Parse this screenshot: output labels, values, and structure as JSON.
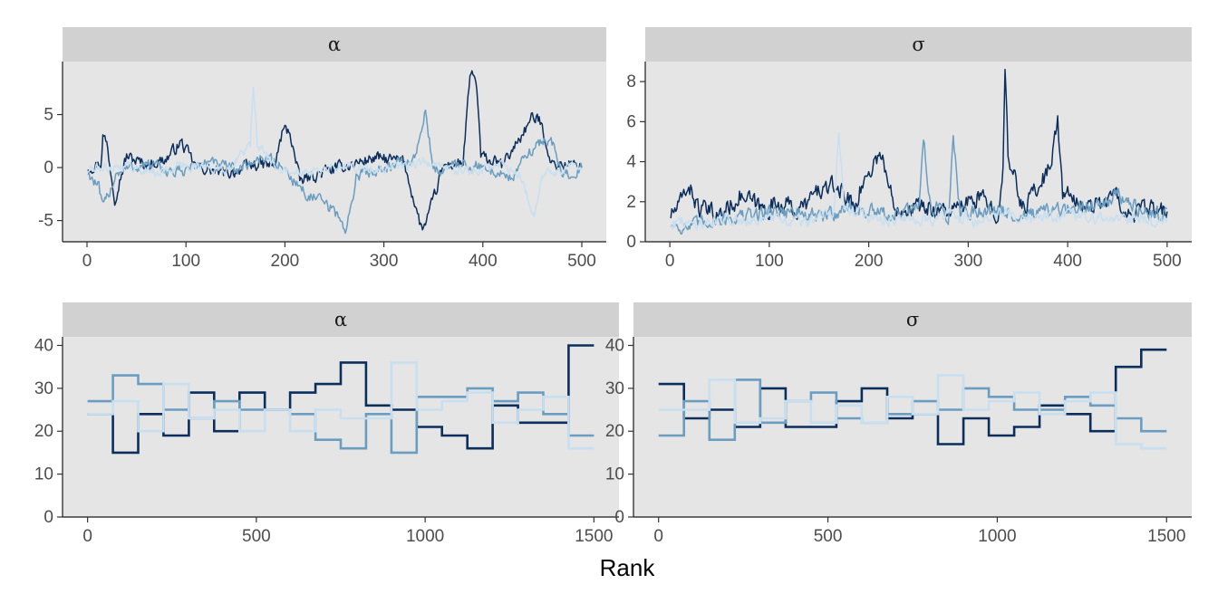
{
  "figure": {
    "xlabel": "Rank",
    "background": "#ffffff",
    "panel_background": "#e5e5e5",
    "strip_background": "#d1d1d1"
  },
  "chain_colors": [
    "#0b2e5c",
    "#2f6390",
    "#6a9dc0",
    "#c8dff0"
  ],
  "chart_data": [
    {
      "type": "line",
      "subtype": "trace",
      "panel_title": "α",
      "xlim": [
        0,
        500
      ],
      "ylim": [
        -7,
        10
      ],
      "xticks": [
        0,
        100,
        200,
        300,
        400,
        500
      ],
      "yticks": [
        -5,
        0,
        5
      ],
      "ytick_labels": [
        "-5",
        "0",
        "5"
      ],
      "grid": false,
      "series": [
        {
          "chain": 1,
          "knots": [
            [
              0,
              0
            ],
            [
              14,
              0.4
            ],
            [
              16,
              3.1
            ],
            [
              20,
              2.3
            ],
            [
              28,
              -2.8
            ],
            [
              40,
              1.1
            ],
            [
              60,
              0.2
            ],
            [
              80,
              0.8
            ],
            [
              95,
              2.4
            ],
            [
              110,
              0.1
            ],
            [
              140,
              -0.6
            ],
            [
              170,
              0.3
            ],
            [
              190,
              0.2
            ],
            [
              198,
              3.6
            ],
            [
              205,
              3.4
            ],
            [
              215,
              -1.3
            ],
            [
              240,
              -0.4
            ],
            [
              290,
              0.9
            ],
            [
              320,
              0.6
            ],
            [
              338,
              -5.8
            ],
            [
              343,
              -5.2
            ],
            [
              360,
              0.1
            ],
            [
              380,
              0.5
            ],
            [
              387,
              8.4
            ],
            [
              390,
              9.0
            ],
            [
              394,
              7.4
            ],
            [
              398,
              1.0
            ],
            [
              420,
              0.2
            ],
            [
              450,
              4.7
            ],
            [
              458,
              4.4
            ],
            [
              470,
              0.3
            ],
            [
              500,
              0.2
            ]
          ],
          "noise": 0.9
        },
        {
          "chain": 2,
          "knots": [
            [
              0,
              -0.3
            ],
            [
              12,
              -2.0
            ],
            [
              16,
              -3.9
            ],
            [
              30,
              -0.4
            ],
            [
              60,
              0.3
            ],
            [
              90,
              -0.5
            ],
            [
              120,
              0.5
            ],
            [
              150,
              -0.2
            ],
            [
              180,
              1.1
            ],
            [
              200,
              -0.2
            ],
            [
              220,
              -2.4
            ],
            [
              240,
              -3.4
            ],
            [
              255,
              -4.6
            ],
            [
              262,
              -6.2
            ],
            [
              272,
              -0.8
            ],
            [
              300,
              0.1
            ],
            [
              330,
              0.6
            ],
            [
              342,
              5.3
            ],
            [
              350,
              -0.4
            ],
            [
              380,
              0.4
            ],
            [
              410,
              -0.3
            ],
            [
              430,
              -1.0
            ],
            [
              450,
              1.9
            ],
            [
              468,
              2.8
            ],
            [
              480,
              -0.6
            ],
            [
              500,
              -0.1
            ]
          ],
          "noise": 0.9
        },
        {
          "chain": 3,
          "knots": [
            [
              0,
              -0.2
            ],
            [
              40,
              0.2
            ],
            [
              70,
              -0.5
            ],
            [
              100,
              0.3
            ],
            [
              140,
              -0.3
            ],
            [
              165,
              2.2
            ],
            [
              168,
              7.4
            ],
            [
              172,
              2.1
            ],
            [
              190,
              0.2
            ],
            [
              230,
              -0.5
            ],
            [
              260,
              0.2
            ],
            [
              300,
              -0.3
            ],
            [
              340,
              0.5
            ],
            [
              380,
              -0.4
            ],
            [
              420,
              0.3
            ],
            [
              440,
              -1.2
            ],
            [
              452,
              -4.7
            ],
            [
              460,
              -0.8
            ],
            [
              490,
              0.2
            ],
            [
              500,
              -0.1
            ]
          ],
          "noise": 0.75
        }
      ]
    },
    {
      "type": "line",
      "subtype": "trace",
      "panel_title": "σ",
      "xlim": [
        0,
        500
      ],
      "ylim": [
        0,
        9
      ],
      "xticks": [
        0,
        100,
        200,
        300,
        400,
        500
      ],
      "yticks": [
        0,
        2,
        4,
        6,
        8
      ],
      "ytick_labels": [
        "0",
        "2",
        "4",
        "6",
        "8"
      ],
      "grid": false,
      "series": [
        {
          "chain": 1,
          "knots": [
            [
              0,
              1.3
            ],
            [
              10,
              1.8
            ],
            [
              18,
              2.9
            ],
            [
              30,
              1.6
            ],
            [
              50,
              1.3
            ],
            [
              70,
              2.3
            ],
            [
              95,
              1.6
            ],
            [
              110,
              2.0
            ],
            [
              130,
              1.5
            ],
            [
              150,
              2.6
            ],
            [
              170,
              2.7
            ],
            [
              185,
              1.8
            ],
            [
              200,
              3.5
            ],
            [
              212,
              4.5
            ],
            [
              225,
              1.8
            ],
            [
              260,
              1.7
            ],
            [
              285,
              1.5
            ],
            [
              310,
              2.2
            ],
            [
              330,
              1.5
            ],
            [
              335,
              4.0
            ],
            [
              337,
              8.4
            ],
            [
              340,
              4.2
            ],
            [
              355,
              1.7
            ],
            [
              380,
              3.5
            ],
            [
              390,
              5.9
            ],
            [
              395,
              2.4
            ],
            [
              420,
              1.7
            ],
            [
              450,
              2.3
            ],
            [
              460,
              1.3
            ],
            [
              480,
              1.6
            ],
            [
              500,
              1.4
            ]
          ],
          "noise": 0.75
        },
        {
          "chain": 2,
          "knots": [
            [
              0,
              0.9
            ],
            [
              20,
              0.7
            ],
            [
              40,
              1.1
            ],
            [
              80,
              1.3
            ],
            [
              110,
              1.6
            ],
            [
              150,
              1.2
            ],
            [
              180,
              1.7
            ],
            [
              220,
              1.3
            ],
            [
              250,
              1.6
            ],
            [
              255,
              5.2
            ],
            [
              262,
              1.8
            ],
            [
              280,
              1.4
            ],
            [
              285,
              5.1
            ],
            [
              292,
              1.5
            ],
            [
              320,
              1.6
            ],
            [
              360,
              1.3
            ],
            [
              390,
              1.5
            ],
            [
              420,
              1.8
            ],
            [
              450,
              2.4
            ],
            [
              470,
              1.6
            ],
            [
              490,
              1.4
            ],
            [
              500,
              1.3
            ]
          ],
          "noise": 0.6
        },
        {
          "chain": 3,
          "knots": [
            [
              0,
              1.0
            ],
            [
              30,
              0.9
            ],
            [
              60,
              1.2
            ],
            [
              100,
              1.1
            ],
            [
              140,
              1.0
            ],
            [
              165,
              1.5
            ],
            [
              170,
              5.7
            ],
            [
              175,
              1.8
            ],
            [
              200,
              1.2
            ],
            [
              240,
              1.1
            ],
            [
              280,
              1.3
            ],
            [
              310,
              1.0
            ],
            [
              330,
              1.4
            ],
            [
              360,
              1.2
            ],
            [
              400,
              1.3
            ],
            [
              440,
              1.1
            ],
            [
              470,
              1.2
            ],
            [
              500,
              1.0
            ]
          ],
          "noise": 0.5
        }
      ]
    },
    {
      "type": "line",
      "subtype": "rank-histogram-step",
      "panel_title": "α",
      "xlim": [
        0,
        1500
      ],
      "ylim": [
        0,
        42
      ],
      "xticks": [
        0,
        500,
        1000,
        1500
      ],
      "yticks": [
        0,
        10,
        20,
        30,
        40
      ],
      "ytick_labels": [
        "0",
        "10",
        "20",
        "30",
        "40"
      ],
      "bin_edges": [
        0,
        75,
        150,
        225,
        300,
        375,
        450,
        525,
        600,
        675,
        750,
        825,
        900,
        975,
        1050,
        1125,
        1200,
        1275,
        1350,
        1425,
        1500
      ],
      "grid": false,
      "series": [
        {
          "chain": 1,
          "values": [
            24,
            15,
            24,
            19,
            29,
            20,
            29,
            25,
            29,
            31,
            36,
            26,
            25,
            21,
            19,
            16,
            26,
            22,
            22,
            40
          ]
        },
        {
          "chain": 2,
          "values": [
            27,
            33,
            31,
            25,
            23,
            27,
            25,
            25,
            24,
            18,
            16,
            24,
            15,
            28,
            28,
            30,
            27,
            29,
            24,
            19
          ]
        },
        {
          "chain": 3,
          "values": [
            24,
            27,
            20,
            31,
            23,
            25,
            20,
            25,
            20,
            25,
            23,
            23,
            36,
            25,
            27,
            29,
            22,
            25,
            28,
            16
          ]
        }
      ]
    },
    {
      "type": "line",
      "subtype": "rank-histogram-step",
      "panel_title": "σ",
      "xlim": [
        0,
        1500
      ],
      "ylim": [
        0,
        42
      ],
      "xticks": [
        0,
        500,
        1000,
        1500
      ],
      "yticks": [
        0,
        10,
        20,
        30,
        40
      ],
      "ytick_labels": [
        "0",
        "10",
        "20",
        "30",
        "40"
      ],
      "bin_edges": [
        0,
        75,
        150,
        225,
        300,
        375,
        450,
        525,
        600,
        675,
        750,
        825,
        900,
        975,
        1050,
        1125,
        1200,
        1275,
        1350,
        1425,
        1500
      ],
      "grid": false,
      "series": [
        {
          "chain": 1,
          "values": [
            31,
            23,
            25,
            21,
            30,
            21,
            21,
            27,
            30,
            23,
            24,
            17,
            23,
            19,
            21,
            26,
            24,
            20,
            35,
            39
          ]
        },
        {
          "chain": 2,
          "values": [
            19,
            27,
            18,
            32,
            22,
            27,
            29,
            23,
            22,
            24,
            27,
            25,
            30,
            28,
            25,
            25,
            28,
            26,
            23,
            20
          ]
        },
        {
          "chain": 3,
          "values": [
            25,
            25,
            32,
            22,
            23,
            27,
            22,
            26,
            22,
            28,
            24,
            33,
            25,
            27,
            29,
            24,
            27,
            29,
            17,
            16
          ]
        }
      ]
    }
  ]
}
